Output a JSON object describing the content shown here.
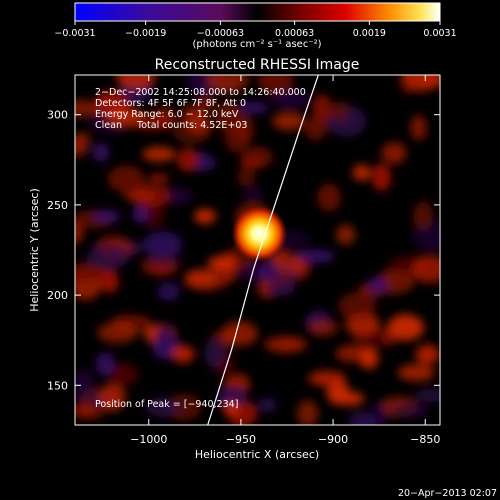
{
  "chart_data": {
    "type": "heatmap",
    "title": "Reconstructed RHESSI Image",
    "xlabel": "Heliocentric X (arcsec)",
    "ylabel": "Heliocentric Y (arcsec)",
    "xlim": [
      -1040,
      -842
    ],
    "ylim": [
      128,
      322
    ],
    "x_ticks": [
      -1000,
      -950,
      -900,
      -850
    ],
    "y_ticks": [
      150,
      200,
      250,
      300
    ],
    "x_tick_labels": [
      "−1000",
      "−950",
      "−900",
      "−850"
    ],
    "y_tick_labels": [
      "150",
      "200",
      "250",
      "300"
    ],
    "colorbar": {
      "min": -0.0031,
      "max": 0.0031,
      "ticks": [
        -0.0031,
        -0.0019,
        -0.00063,
        0.00063,
        0.0019,
        0.0031
      ],
      "tick_labels": [
        "−0.0031",
        "−0.0019",
        "−0.00063",
        "0.00063",
        "0.0019",
        "0.0031"
      ],
      "unit_label": "(photons cm⁻² s⁻¹ asec⁻²)"
    },
    "annotations": [
      "2−Dec−2002 14:25:08.000 to 14:26:40.000",
      "Detectors: 4F 5F 6F 7F 8F, Att 0",
      "Energy Range: 6.0 − 12.0 keV",
      "Clean     Total counts: 4.52E+03"
    ],
    "peak_label": "Position of Peak = [−940,234]",
    "peak": {
      "x": -940,
      "y": 234
    },
    "limb_arc": {
      "x": [
        -968,
        -955,
        -943,
        -930,
        -917,
        -908
      ],
      "y": [
        128,
        170,
        215,
        255,
        295,
        322
      ]
    },
    "colormap": "black-blue-purple-red-yellow-white",
    "footer_timestamp": "20−Apr−2013 02:07"
  }
}
